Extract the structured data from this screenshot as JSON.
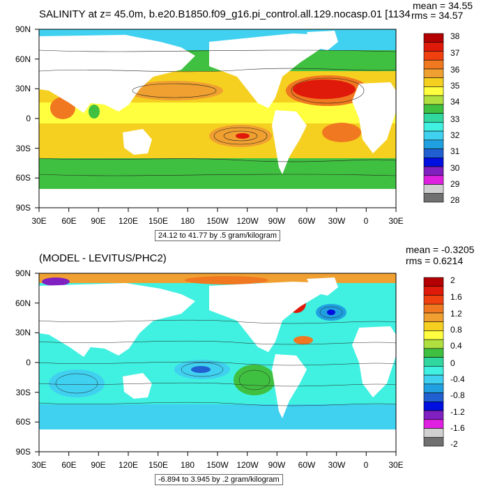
{
  "colors": {
    "land": "#ffffff",
    "frame": "#000000",
    "contour": "#222222"
  },
  "top": {
    "title": "SALINITY at z=  45.0m, b.e20.B1850.f09_g16.pi_control.all.129.nocasp.01 [1134",
    "mean_label": "mean = 34.55",
    "rms_label": "rms = 34.57",
    "range_label": "24.12 to 41.77 by .5 gram/kilogram",
    "lat_labels": [
      "90N",
      "60N",
      "30N",
      "0",
      "30S",
      "60S",
      "90S"
    ],
    "lon_labels": [
      "30E",
      "60E",
      "90E",
      "120E",
      "150E",
      "180",
      "150W",
      "120W",
      "90W",
      "60W",
      "30W",
      "0",
      "30E"
    ],
    "colorbar": {
      "labels": [
        "38",
        "37",
        "36",
        "35",
        "34",
        "33",
        "32",
        "31",
        "30",
        "29",
        "28"
      ],
      "colors": [
        "#b40000",
        "#e01a0a",
        "#f04010",
        "#f07820",
        "#f0a030",
        "#f5d020",
        "#ffff40",
        "#b0e040",
        "#40c040",
        "#30d8a0",
        "#40f0e0",
        "#40d0f0",
        "#20a0e0",
        "#2060d0",
        "#0010e0",
        "#8020c0",
        "#e020e0",
        "#d0d0d0",
        "#707070"
      ]
    }
  },
  "bottom": {
    "title": "(MODEL - LEVITUS/PHC2)",
    "mean_label": "mean = -0.3205",
    "rms_label": "rms = 0.6214",
    "range_label": "-6.894 to 3.945 by .2 gram/kilogram",
    "lat_labels": [
      "90N",
      "60N",
      "30N",
      "0",
      "30S",
      "60S",
      "90S"
    ],
    "lon_labels": [
      "30E",
      "60E",
      "90E",
      "120E",
      "150E",
      "180",
      "150W",
      "120W",
      "90W",
      "60W",
      "30W",
      "0",
      "30E"
    ],
    "colorbar": {
      "labels": [
        "2",
        "1.6",
        "1.2",
        "0.8",
        "0.4",
        "0",
        "-0.4",
        "-0.8",
        "-1.2",
        "-1.6",
        "-2"
      ],
      "colors": [
        "#b40000",
        "#e01a0a",
        "#f04010",
        "#f07820",
        "#f0a030",
        "#f5d020",
        "#ffff40",
        "#b0e040",
        "#40c040",
        "#30d8a0",
        "#40f0e0",
        "#40d0f0",
        "#20a0e0",
        "#2060d0",
        "#0010e0",
        "#8020c0",
        "#e020e0",
        "#d0d0d0",
        "#707070"
      ]
    }
  }
}
